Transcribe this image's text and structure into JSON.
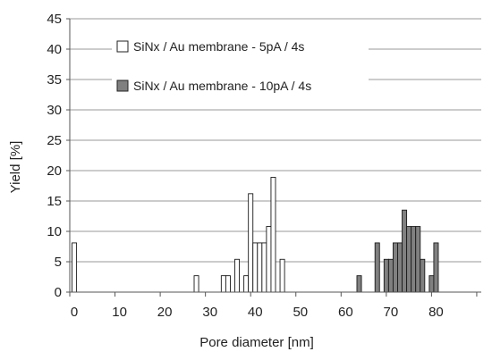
{
  "chart_data": {
    "type": "bar",
    "title": "",
    "xlabel": "Pore diameter  [nm]",
    "ylabel": "Yield [%]",
    "xlim": [
      -1,
      90
    ],
    "ylim": [
      0,
      45
    ],
    "x_ticks": [
      0,
      10,
      20,
      30,
      40,
      50,
      60,
      70,
      80
    ],
    "y_ticks": [
      0,
      5,
      10,
      15,
      20,
      25,
      30,
      35,
      40,
      45
    ],
    "grid": "horizontal",
    "legend_position": "top-center",
    "bin_width_nm": 1,
    "series": [
      {
        "name": "SiNx / Au membrane - 5pA / 4s",
        "color": "#ffffff",
        "points": [
          {
            "x": 0,
            "y": 8.1
          },
          {
            "x": 27,
            "y": 2.7
          },
          {
            "x": 33,
            "y": 2.7
          },
          {
            "x": 34,
            "y": 2.7
          },
          {
            "x": 36,
            "y": 5.4
          },
          {
            "x": 38,
            "y": 2.7
          },
          {
            "x": 39,
            "y": 16.2
          },
          {
            "x": 40,
            "y": 8.1
          },
          {
            "x": 41,
            "y": 8.1
          },
          {
            "x": 42,
            "y": 8.1
          },
          {
            "x": 43,
            "y": 10.8
          },
          {
            "x": 44,
            "y": 18.9
          },
          {
            "x": 46,
            "y": 5.4
          }
        ]
      },
      {
        "name": "SiNx / Au membrane - 10pA / 4s",
        "color": "#808080",
        "points": [
          {
            "x": 63,
            "y": 2.7
          },
          {
            "x": 67,
            "y": 8.1
          },
          {
            "x": 69,
            "y": 5.4
          },
          {
            "x": 70,
            "y": 5.4
          },
          {
            "x": 71,
            "y": 8.1
          },
          {
            "x": 72,
            "y": 8.1
          },
          {
            "x": 73,
            "y": 13.5
          },
          {
            "x": 74,
            "y": 10.8
          },
          {
            "x": 75,
            "y": 10.8
          },
          {
            "x": 76,
            "y": 10.8
          },
          {
            "x": 77,
            "y": 5.4
          },
          {
            "x": 79,
            "y": 2.7
          },
          {
            "x": 80,
            "y": 8.1
          }
        ]
      }
    ]
  }
}
